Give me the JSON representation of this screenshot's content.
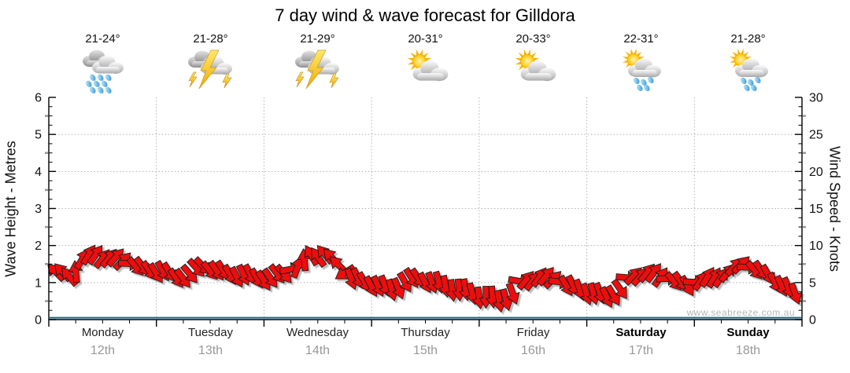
{
  "title": "7 day wind & wave forecast for Gilldora",
  "watermark": "www.seabreeze.com.au",
  "colors": {
    "arrow_red": "#ee1111",
    "arrow_outline": "#1a1a1a",
    "arrow_shadow": "#aaaaaa",
    "wave_line_teal": "#1e647e",
    "grid_gray": "#b0b0b0",
    "axis_black": "#000000",
    "date_gray": "#999999",
    "watermark_gray": "#b6b6b6"
  },
  "chart_data": {
    "type": "wind-arrows-with-wave-line",
    "title": "7 day wind & wave forecast for Gilldora",
    "left_axis": {
      "label": "Wave Height - Metres",
      "range": [
        0,
        6
      ],
      "ticks": [
        0,
        1,
        2,
        3,
        4,
        5,
        6
      ]
    },
    "right_axis": {
      "label": "Wind Speed - Knots",
      "range": [
        0,
        30
      ],
      "ticks": [
        0,
        5,
        10,
        15,
        20,
        25,
        30
      ]
    },
    "grid": {
      "h_lines_metres": [
        1,
        2,
        3,
        4,
        5
      ],
      "v_lines_at_day_boundaries": true,
      "style": "dotted"
    },
    "days": [
      {
        "name": "Monday",
        "date": "12th",
        "temp_range": "21-24°",
        "icon": "rain",
        "bold": false
      },
      {
        "name": "Tuesday",
        "date": "13th",
        "temp_range": "21-28°",
        "icon": "storm",
        "bold": false
      },
      {
        "name": "Wednesday",
        "date": "14th",
        "temp_range": "21-29°",
        "icon": "storm",
        "bold": false
      },
      {
        "name": "Thursday",
        "date": "15th",
        "temp_range": "20-31°",
        "icon": "partly-cloudy",
        "bold": false
      },
      {
        "name": "Friday",
        "date": "16th",
        "temp_range": "20-33°",
        "icon": "partly-cloudy",
        "bold": false
      },
      {
        "name": "Saturday",
        "date": "17th",
        "temp_range": "22-31°",
        "icon": "sun-shower",
        "bold": true
      },
      {
        "name": "Sunday",
        "date": "18th",
        "temp_range": "21-28°",
        "icon": "sun-shower",
        "bold": true
      }
    ],
    "samples_per_day": 8,
    "sample_interval_hours": 3,
    "wind_speed_knots": [
      7.5,
      7,
      9.5,
      10,
      9.5,
      9,
      8.5,
      8,
      8,
      7,
      7.5,
      8.5,
      8,
      7.5,
      7.5,
      7,
      7,
      7.5,
      8.5,
      10,
      10,
      8.5,
      7,
      6.5,
      6,
      5.5,
      6.5,
      7,
      6.5,
      6,
      5.5,
      5,
      4.5,
      4,
      5,
      6.5,
      7,
      6.5,
      6,
      5.5,
      5,
      4.5,
      5.5,
      7,
      7.5,
      7,
      6.5,
      6,
      6.5,
      7,
      7.5,
      8.5,
      8,
      7.5,
      6,
      5
    ],
    "wind_direction_deg": [
      315,
      320,
      30,
      35,
      40,
      45,
      140,
      145,
      150,
      145,
      140,
      135,
      145,
      150,
      155,
      150,
      145,
      140,
      20,
      330,
      320,
      315,
      160,
      150,
      155,
      165,
      150,
      145,
      160,
      170,
      175,
      165,
      180,
      170,
      160,
      40,
      35,
      45,
      150,
      160,
      165,
      155,
      145,
      45,
      40,
      35,
      140,
      150,
      35,
      30,
      40,
      45,
      140,
      150,
      155,
      160
    ],
    "wave_height_m": {
      "shape": "flat",
      "value": 0.05
    }
  }
}
